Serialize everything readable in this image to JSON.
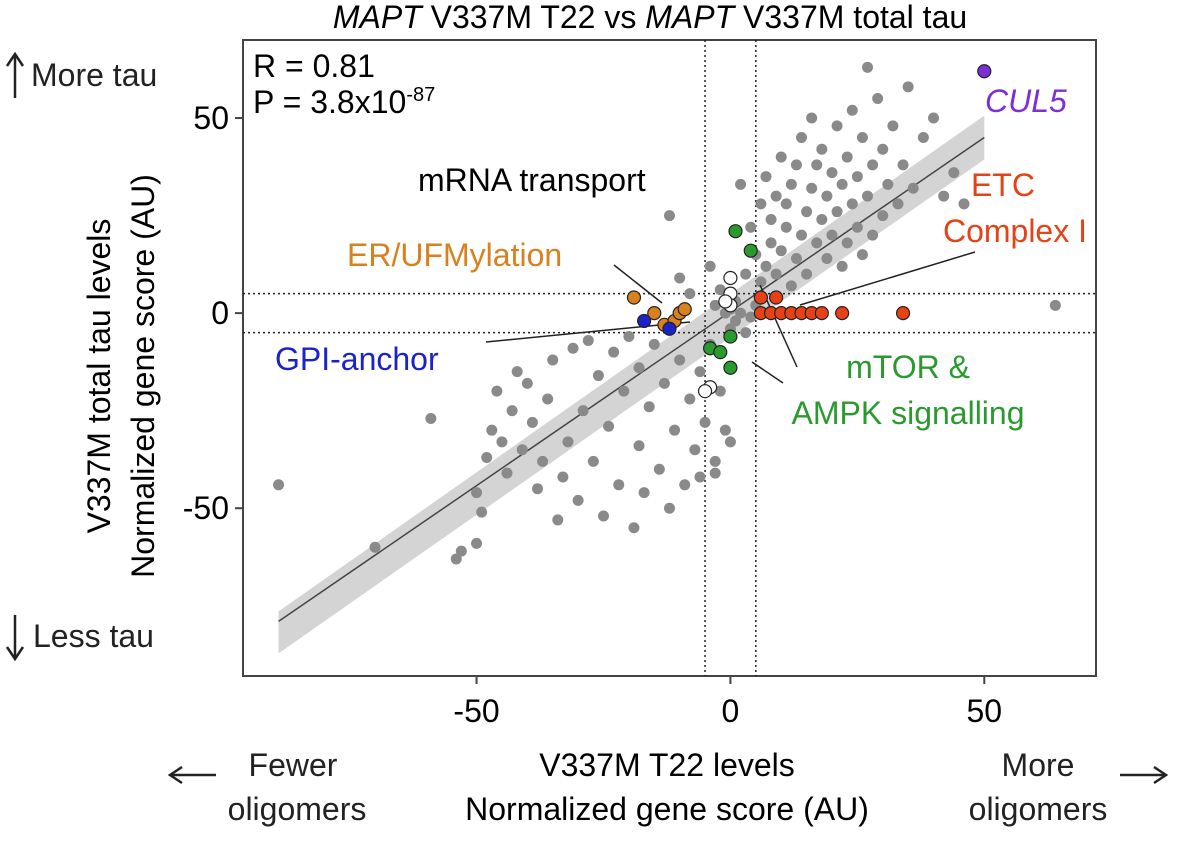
{
  "chart_data": {
    "type": "scatter",
    "title_parts": {
      "gene1": "MAPT",
      "text1": " V337M T22 vs ",
      "gene2": "MAPT",
      "text2": " V337M total tau"
    },
    "xlabel_line1": "V337M T22 levels",
    "xlabel_line2": "Normalized gene score (AU)",
    "ylabel_line1": "V337M total tau levels",
    "ylabel_line2": "Normalized gene score (AU)",
    "x_ticks": [
      "-50",
      "0",
      "50"
    ],
    "y_ticks": [
      "50",
      "0",
      "-50"
    ],
    "x_tick_values": [
      -50,
      0,
      50
    ],
    "y_tick_values": [
      50,
      0,
      -50
    ],
    "xlim": [
      -96,
      72
    ],
    "ylim": [
      -93,
      70
    ],
    "grid": false,
    "thresholds": {
      "x": [
        -5,
        5
      ],
      "y": [
        5,
        -5
      ]
    },
    "stats": {
      "r_text": "R = 0.81",
      "p_prefix": "P = 3.8x10",
      "p_exponent": "-87"
    },
    "regression": {
      "x": [
        -89,
        50
      ],
      "y": [
        -79,
        45
      ]
    },
    "side_labels": {
      "left_top": "More tau",
      "left_bottom": "Less tau",
      "bottom_left_line1": "Fewer",
      "bottom_left_line2": "oligomers",
      "bottom_right_line1": "More",
      "bottom_right_line2": "oligomers"
    },
    "annotations": {
      "cul5": "CUL5",
      "mrna": "mRNA transport",
      "etc_line1": "ETC",
      "etc_line2": "Complex I",
      "er": "ER/UFMylation",
      "gpi": "GPI-anchor",
      "mtor_line1": "mTOR &",
      "mtor_line2": "AMPK signalling"
    },
    "colors": {
      "background_points": "#8a8a8a",
      "cul5": "#7b2fd6",
      "etc": "#e64216",
      "er": "#d9811e",
      "gpi": "#1a22c8",
      "mtor": "#2b9a2e",
      "mrna": "#ffffff",
      "regression_line": "#444444",
      "confidence_band": "#d4d4d4"
    },
    "series": [
      {
        "name": "CUL5",
        "color": "#7b2fd6",
        "points": [
          [
            50,
            62
          ]
        ]
      },
      {
        "name": "ETC Complex I",
        "color": "#e64216",
        "points": [
          [
            6,
            4
          ],
          [
            9,
            4
          ],
          [
            6,
            0
          ],
          [
            8,
            0
          ],
          [
            10,
            0
          ],
          [
            12,
            0
          ],
          [
            14,
            0
          ],
          [
            16,
            0
          ],
          [
            18,
            0
          ],
          [
            22,
            0
          ],
          [
            34,
            0
          ]
        ]
      },
      {
        "name": "ER/UFMylation",
        "color": "#d9811e",
        "points": [
          [
            -19,
            4
          ],
          [
            -15,
            0
          ],
          [
            -13,
            -3
          ],
          [
            -11,
            -2
          ],
          [
            -10,
            0
          ],
          [
            -9,
            1
          ]
        ]
      },
      {
        "name": "GPI-anchor",
        "color": "#1a22c8",
        "points": [
          [
            -17,
            -2
          ],
          [
            -12,
            -4
          ]
        ]
      },
      {
        "name": "mTOR & AMPK signalling",
        "color": "#2b9a2e",
        "points": [
          [
            1,
            21
          ],
          [
            4,
            16
          ],
          [
            0,
            -6
          ],
          [
            -4,
            -9
          ],
          [
            -2,
            -10
          ],
          [
            0,
            -14
          ]
        ]
      },
      {
        "name": "mRNA transport",
        "color": "#ffffff",
        "points": [
          [
            0,
            9
          ],
          [
            0,
            5
          ],
          [
            0,
            2
          ],
          [
            -1,
            3
          ],
          [
            -4,
            -19
          ],
          [
            -5,
            -20
          ]
        ]
      }
    ],
    "background_points": [
      [
        -89,
        -44
      ],
      [
        -70,
        -60
      ],
      [
        -59,
        -27
      ],
      [
        -54,
        -63
      ],
      [
        -53,
        -61
      ],
      [
        -50,
        -59
      ],
      [
        -50,
        -46
      ],
      [
        -49,
        -51
      ],
      [
        -48,
        -37
      ],
      [
        -47,
        -30
      ],
      [
        -46,
        -20
      ],
      [
        -45,
        -33
      ],
      [
        -44,
        -41
      ],
      [
        -43,
        -25
      ],
      [
        -42,
        -15
      ],
      [
        -41,
        -35
      ],
      [
        -40,
        -18
      ],
      [
        -39,
        -28
      ],
      [
        -38,
        -45
      ],
      [
        -37,
        -38
      ],
      [
        -36,
        -22
      ],
      [
        -35,
        -12
      ],
      [
        -34,
        -53
      ],
      [
        -33,
        -42
      ],
      [
        -32,
        -33
      ],
      [
        -31,
        -9
      ],
      [
        -30,
        -48
      ],
      [
        -29,
        -25
      ],
      [
        -28,
        -7
      ],
      [
        -27,
        -38
      ],
      [
        -26,
        -16
      ],
      [
        -25,
        -52
      ],
      [
        -24,
        -29
      ],
      [
        -23,
        -10
      ],
      [
        -22,
        -44
      ],
      [
        -21,
        -20
      ],
      [
        -20,
        -6
      ],
      [
        -19,
        -55
      ],
      [
        -18,
        -34
      ],
      [
        -18,
        -14
      ],
      [
        -17,
        -46
      ],
      [
        -16,
        -24
      ],
      [
        -15,
        -8
      ],
      [
        -14,
        -40
      ],
      [
        -13,
        -18
      ],
      [
        -12,
        25
      ],
      [
        -12,
        -50
      ],
      [
        -11,
        -30
      ],
      [
        -10,
        -12
      ],
      [
        -10,
        9
      ],
      [
        -9,
        -44
      ],
      [
        -8,
        -22
      ],
      [
        -8,
        5
      ],
      [
        -7,
        -35
      ],
      [
        -6,
        -15
      ],
      [
        -6,
        -42
      ],
      [
        -5,
        -28
      ],
      [
        -4,
        -8
      ],
      [
        -4,
        12
      ],
      [
        -3,
        -38
      ],
      [
        -3,
        2
      ],
      [
        -2,
        -20
      ],
      [
        -2,
        6
      ],
      [
        -1,
        -30
      ],
      [
        -1,
        0
      ],
      [
        0,
        -4
      ],
      [
        0,
        1
      ],
      [
        1,
        -2
      ],
      [
        1,
        3
      ],
      [
        2,
        0
      ],
      [
        2,
        33
      ],
      [
        3,
        10
      ],
      [
        3,
        -5
      ],
      [
        4,
        22
      ],
      [
        4,
        -1
      ],
      [
        5,
        15
      ],
      [
        5,
        2
      ],
      [
        6,
        28
      ],
      [
        6,
        8
      ],
      [
        7,
        35
      ],
      [
        7,
        12
      ],
      [
        8,
        18
      ],
      [
        8,
        24
      ],
      [
        9,
        30
      ],
      [
        9,
        10
      ],
      [
        10,
        40
      ],
      [
        10,
        16
      ],
      [
        11,
        22
      ],
      [
        11,
        28
      ],
      [
        12,
        33
      ],
      [
        12,
        7
      ],
      [
        13,
        38
      ],
      [
        13,
        14
      ],
      [
        14,
        45
      ],
      [
        14,
        20
      ],
      [
        15,
        26
      ],
      [
        15,
        10
      ],
      [
        16,
        50
      ],
      [
        16,
        32
      ],
      [
        17,
        18
      ],
      [
        17,
        38
      ],
      [
        18,
        24
      ],
      [
        18,
        42
      ],
      [
        19,
        14
      ],
      [
        19,
        30
      ],
      [
        20,
        36
      ],
      [
        20,
        20
      ],
      [
        21,
        48
      ],
      [
        21,
        26
      ],
      [
        22,
        12
      ],
      [
        22,
        33
      ],
      [
        23,
        40
      ],
      [
        23,
        18
      ],
      [
        24,
        28
      ],
      [
        24,
        52
      ],
      [
        25,
        22
      ],
      [
        25,
        35
      ],
      [
        26,
        45
      ],
      [
        26,
        15
      ],
      [
        27,
        63
      ],
      [
        27,
        30
      ],
      [
        28,
        38
      ],
      [
        28,
        20
      ],
      [
        29,
        55
      ],
      [
        30,
        25
      ],
      [
        30,
        42
      ],
      [
        31,
        33
      ],
      [
        32,
        48
      ],
      [
        33,
        28
      ],
      [
        34,
        38
      ],
      [
        35,
        58
      ],
      [
        36,
        32
      ],
      [
        38,
        45
      ],
      [
        40,
        50
      ],
      [
        42,
        30
      ],
      [
        44,
        36
      ],
      [
        46,
        28
      ],
      [
        64,
        2
      ],
      [
        -3,
        -41
      ],
      [
        0,
        -33
      ]
    ]
  }
}
